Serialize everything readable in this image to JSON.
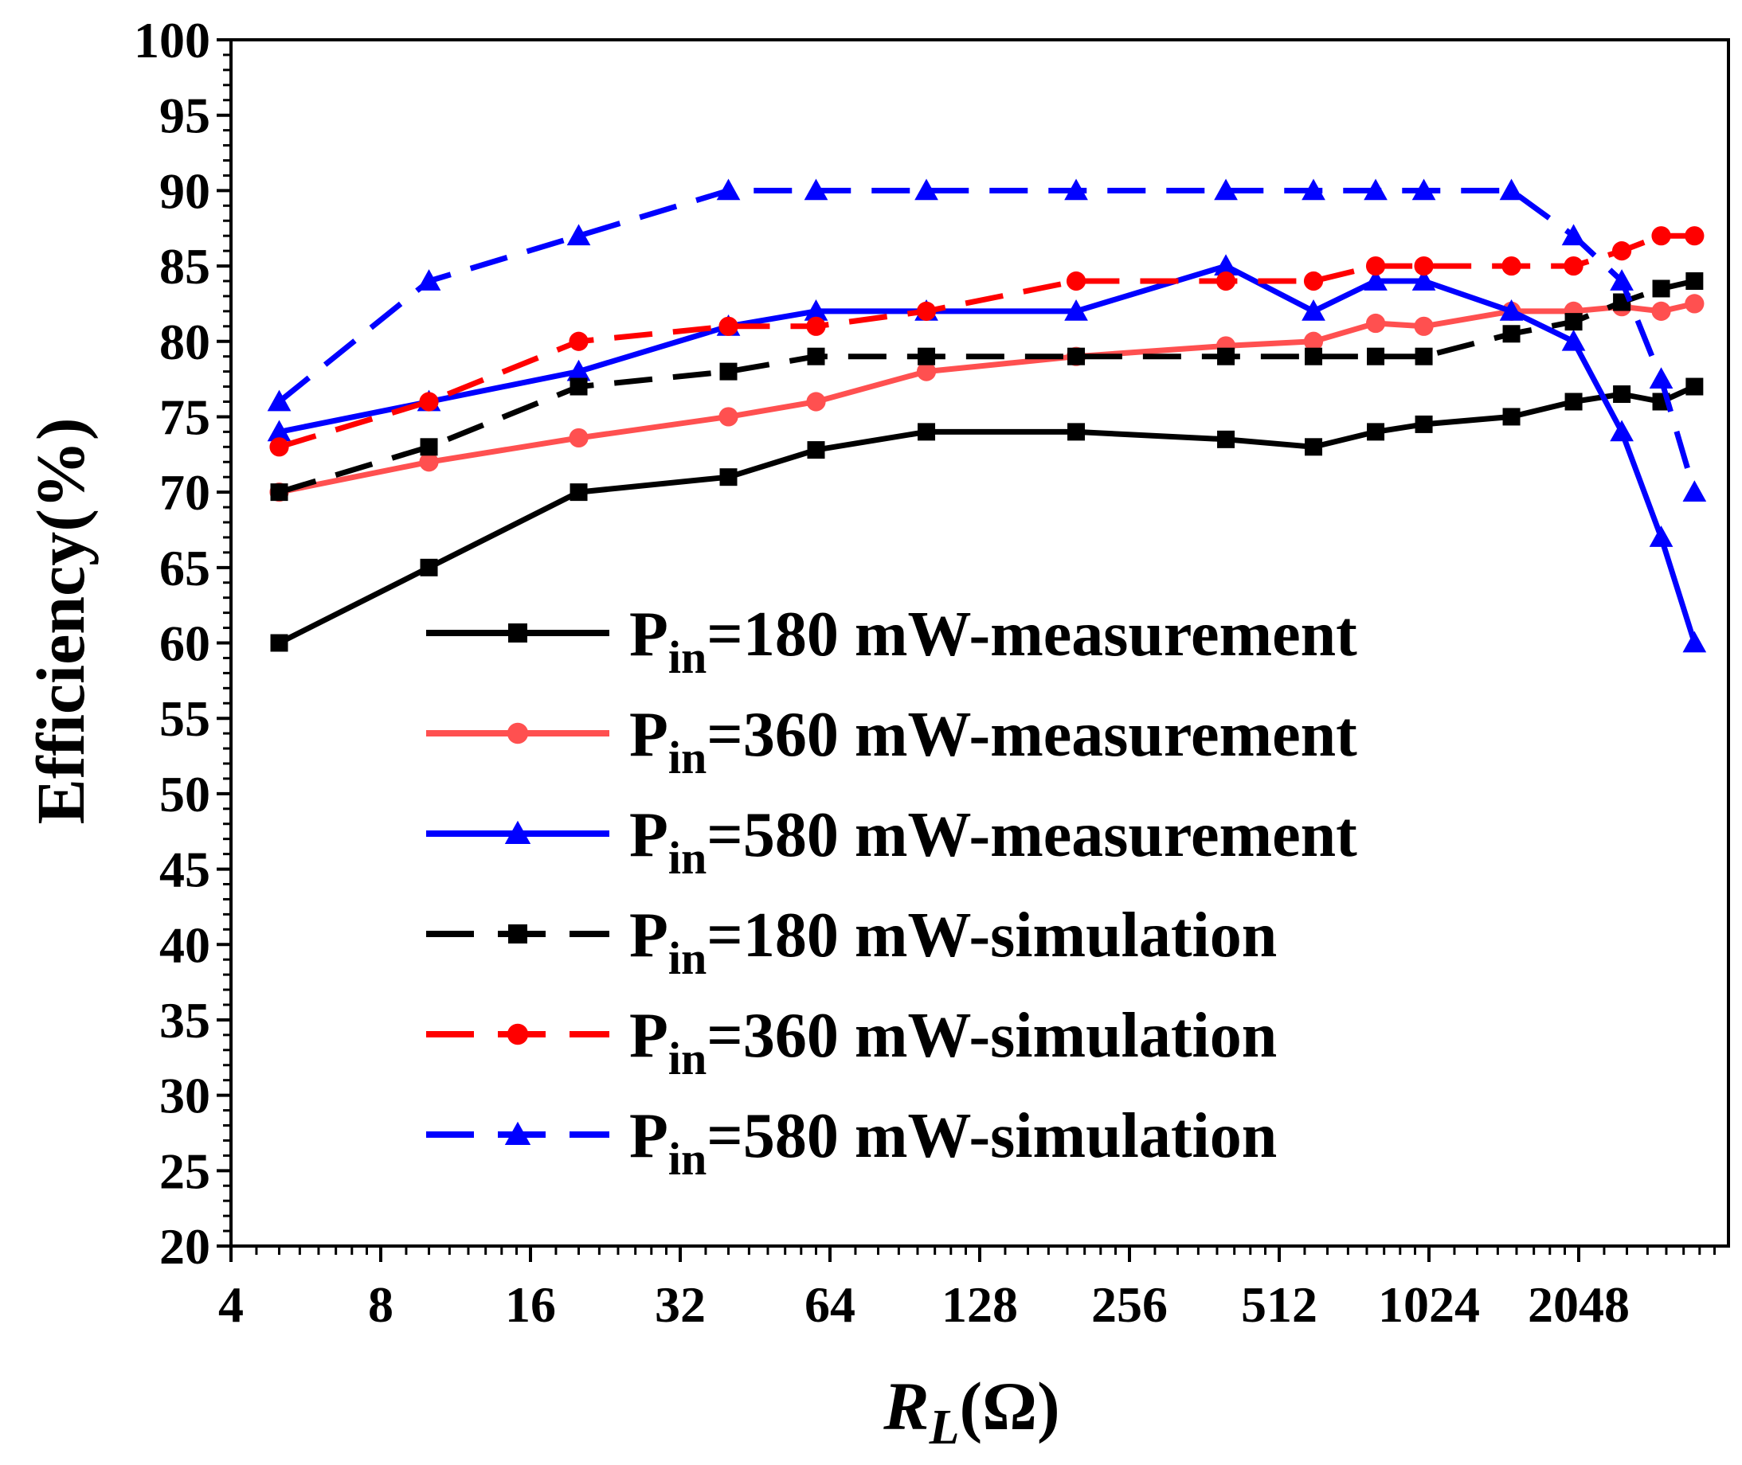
{
  "chart_data": {
    "type": "line",
    "title": "",
    "xlabel": {
      "italic_symbol": "R",
      "subscript": "L",
      "unit": "(Ω)"
    },
    "ylabel": "Efficiency(%)",
    "xscale": "log2",
    "xlim": [
      4,
      4096
    ],
    "ylim": [
      20,
      100
    ],
    "xticks": [
      4,
      8,
      16,
      32,
      64,
      128,
      256,
      512,
      1024,
      2048
    ],
    "xtick_labels": [
      "4",
      "8",
      "16",
      "32",
      "64",
      "128",
      "256",
      "512",
      "1024",
      "2048"
    ],
    "yticks": [
      20,
      25,
      30,
      35,
      40,
      45,
      50,
      55,
      60,
      65,
      70,
      75,
      80,
      85,
      90,
      95,
      100
    ],
    "ytick_labels": [
      "20",
      "25",
      "30",
      "35",
      "40",
      "45",
      "50",
      "55",
      "60",
      "65",
      "70",
      "75",
      "80",
      "85",
      "90",
      "95",
      "100"
    ],
    "legend_position": "center",
    "series": [
      {
        "name": "Pin=180 mW-measurement",
        "label_main": "P",
        "label_sub": "in",
        "label_rest": "=180 mW-measurement",
        "color": "#000000",
        "dash": "solid",
        "marker": "square",
        "x": [
          5,
          10,
          20,
          40,
          60,
          100,
          200,
          400,
          600,
          800,
          1000,
          1500,
          2000,
          2500,
          3000,
          3500
        ],
        "y": [
          60,
          65,
          70,
          71,
          72.8,
          74,
          74,
          73.5,
          73,
          74,
          74.5,
          75,
          76,
          76.5,
          76,
          77
        ]
      },
      {
        "name": "Pin=360 mW-measurement",
        "label_main": "P",
        "label_sub": "in",
        "label_rest": "=360 mW-measurement",
        "color": "#ff5050",
        "dash": "solid",
        "marker": "circle",
        "x": [
          5,
          10,
          20,
          40,
          60,
          100,
          200,
          400,
          600,
          800,
          1000,
          1500,
          2000,
          2500,
          3000,
          3500
        ],
        "y": [
          70,
          72,
          73.6,
          75,
          76,
          78,
          79,
          79.7,
          80,
          81.2,
          81,
          82,
          82,
          82.3,
          82,
          82.5
        ]
      },
      {
        "name": "Pin=580 mW-measurement",
        "label_main": "P",
        "label_sub": "in",
        "label_rest": "=580 mW-measurement",
        "color": "#0000ff",
        "dash": "solid",
        "marker": "triangle",
        "x": [
          5,
          10,
          20,
          40,
          60,
          100,
          200,
          400,
          600,
          800,
          1000,
          1500,
          2000,
          2500,
          3000,
          3500
        ],
        "y": [
          74,
          76,
          78,
          81,
          82,
          82,
          82,
          85,
          82,
          84,
          84,
          82,
          80,
          74,
          67,
          60
        ]
      },
      {
        "name": "Pin=180 mW-simulation",
        "label_main": "P",
        "label_sub": "in",
        "label_rest": "=180 mW-simulation",
        "color": "#000000",
        "dash": "dashed",
        "marker": "square",
        "x": [
          5,
          10,
          20,
          40,
          60,
          100,
          200,
          400,
          600,
          800,
          1000,
          1500,
          2000,
          2500,
          3000,
          3500
        ],
        "y": [
          70,
          73,
          77,
          78,
          79,
          79,
          79,
          79,
          79,
          79,
          79,
          80.5,
          81.3,
          82.6,
          83.5,
          84
        ]
      },
      {
        "name": "Pin=360 mW-simulation",
        "label_main": "P",
        "label_sub": "in",
        "label_rest": "=360 mW-simulation",
        "color": "#ff0000",
        "dash": "dashed",
        "marker": "circle",
        "x": [
          5,
          10,
          20,
          40,
          60,
          100,
          200,
          400,
          600,
          800,
          1000,
          1500,
          2000,
          2500,
          3000,
          3500
        ],
        "y": [
          73,
          76,
          80,
          81,
          81,
          82,
          84,
          84,
          84,
          85,
          85,
          85,
          85,
          86,
          87,
          87
        ]
      },
      {
        "name": "Pin=580 mW-simulation",
        "label_main": "P",
        "label_sub": "in",
        "label_rest": "=580 mW-simulation",
        "color": "#0000ff",
        "dash": "dashed",
        "marker": "triangle",
        "x": [
          5,
          10,
          20,
          40,
          60,
          100,
          200,
          400,
          600,
          800,
          1000,
          1500,
          2000,
          2500,
          3000,
          3500
        ],
        "y": [
          76,
          84,
          87,
          90,
          90,
          90,
          90,
          90,
          90,
          90,
          90,
          90,
          87,
          84,
          77.5,
          70
        ]
      }
    ]
  }
}
